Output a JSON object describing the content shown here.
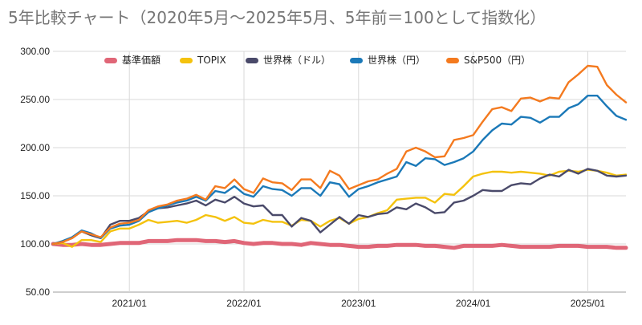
{
  "chart_data": {
    "type": "line",
    "title": "5年比較チャート（2020年5月〜2025年5月、5年前＝100として指数化）",
    "xlabel": "",
    "ylabel": "",
    "ylim": [
      50,
      300
    ],
    "yticks": [
      "50.00",
      "100.00",
      "150.00",
      "200.00",
      "250.00",
      "300.00"
    ],
    "ytick_values": [
      50,
      100,
      150,
      200,
      250,
      300
    ],
    "xticks": [
      "2021/01",
      "2022/01",
      "2023/01",
      "2024/01",
      "2025/01"
    ],
    "xtick_values": [
      "2021-01",
      "2022-01",
      "2023-01",
      "2024-01",
      "2025-01"
    ],
    "x_range": [
      "2020-05",
      "2025-05"
    ],
    "grid": true,
    "legend_position": "top",
    "x": [
      "2020-05",
      "2020-06",
      "2020-07",
      "2020-08",
      "2020-09",
      "2020-10",
      "2020-11",
      "2020-12",
      "2021-01",
      "2021-02",
      "2021-03",
      "2021-04",
      "2021-05",
      "2021-06",
      "2021-07",
      "2021-08",
      "2021-09",
      "2021-10",
      "2021-11",
      "2021-12",
      "2022-01",
      "2022-02",
      "2022-03",
      "2022-04",
      "2022-05",
      "2022-06",
      "2022-07",
      "2022-08",
      "2022-09",
      "2022-10",
      "2022-11",
      "2022-12",
      "2023-01",
      "2023-02",
      "2023-03",
      "2023-04",
      "2023-05",
      "2023-06",
      "2023-07",
      "2023-08",
      "2023-09",
      "2023-10",
      "2023-11",
      "2023-12",
      "2024-01",
      "2024-02",
      "2024-03",
      "2024-04",
      "2024-05",
      "2024-06",
      "2024-07",
      "2024-08",
      "2024-09",
      "2024-10",
      "2024-11",
      "2024-12",
      "2025-01",
      "2025-02",
      "2025-03",
      "2025-04",
      "2025-05"
    ],
    "series": [
      {
        "name": "基準価額",
        "color": "#e06677",
        "values": [
          100,
          99,
          99,
          100,
          99,
          99,
          100,
          101,
          101,
          101,
          103,
          103,
          103,
          104,
          104,
          104,
          103,
          103,
          102,
          103,
          101,
          100,
          101,
          101,
          100,
          100,
          99,
          101,
          100,
          99,
          99,
          98,
          97,
          97,
          98,
          98,
          99,
          99,
          99,
          98,
          98,
          97,
          96,
          98,
          98,
          98,
          98,
          99,
          98,
          97,
          97,
          97,
          97,
          98,
          98,
          98,
          97,
          97,
          97,
          96,
          96
        ]
      },
      {
        "name": "TOPIX",
        "color": "#f4c20d",
        "values": [
          100,
          101,
          97,
          104,
          104,
          102,
          113,
          116,
          116,
          120,
          125,
          122,
          123,
          124,
          122,
          125,
          130,
          128,
          124,
          128,
          122,
          121,
          125,
          123,
          123,
          119,
          125,
          124,
          118,
          124,
          127,
          121,
          126,
          128,
          132,
          135,
          146,
          147,
          148,
          148,
          143,
          152,
          151,
          160,
          170,
          173,
          175,
          175,
          174,
          175,
          174,
          173,
          171,
          175,
          176,
          175,
          177,
          176,
          174,
          171,
          172
        ]
      },
      {
        "name": "世界株（ドル）",
        "color": "#4a4a6a",
        "values": [
          100,
          102,
          106,
          113,
          109,
          106,
          120,
          124,
          124,
          127,
          134,
          137,
          138,
          140,
          142,
          145,
          140,
          146,
          143,
          149,
          142,
          139,
          140,
          130,
          130,
          118,
          127,
          124,
          112,
          120,
          128,
          121,
          130,
          128,
          131,
          132,
          138,
          136,
          142,
          138,
          132,
          133,
          143,
          145,
          150,
          156,
          155,
          155,
          161,
          163,
          162,
          168,
          172,
          170,
          177,
          173,
          178,
          176,
          171,
          170,
          171
        ]
      },
      {
        "name": "世界株（円）",
        "color": "#1b79b8",
        "values": [
          100,
          103,
          107,
          114,
          111,
          106,
          116,
          119,
          120,
          124,
          133,
          137,
          140,
          143,
          145,
          149,
          145,
          155,
          153,
          160,
          152,
          149,
          160,
          157,
          156,
          150,
          158,
          158,
          150,
          164,
          162,
          149,
          157,
          160,
          164,
          167,
          170,
          185,
          181,
          189,
          188,
          182,
          185,
          189,
          196,
          208,
          218,
          225,
          224,
          232,
          231,
          226,
          232,
          232,
          241,
          245,
          254,
          254,
          243,
          233,
          229
        ]
      },
      {
        "name": "S&P500（円）",
        "color": "#f47a1f",
        "values": [
          100,
          102,
          106,
          113,
          110,
          107,
          117,
          121,
          122,
          125,
          135,
          139,
          141,
          145,
          147,
          151,
          146,
          160,
          158,
          167,
          157,
          153,
          168,
          164,
          163,
          156,
          167,
          167,
          158,
          176,
          171,
          157,
          161,
          165,
          167,
          173,
          178,
          196,
          200,
          196,
          190,
          191,
          208,
          210,
          213,
          227,
          240,
          242,
          238,
          251,
          252,
          248,
          252,
          251,
          268,
          276,
          285,
          284,
          265,
          255,
          247
        ]
      }
    ]
  }
}
